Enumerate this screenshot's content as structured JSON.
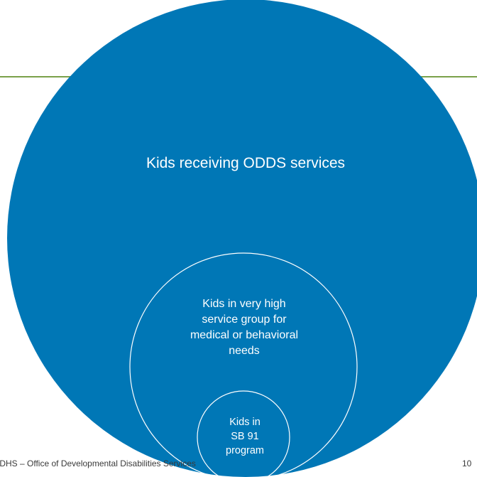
{
  "diagram": {
    "outer_label": "Kids receiving ODDS services",
    "middle_label": [
      "Kids in very high",
      "service group for",
      "medical or behavioral",
      "needs"
    ],
    "inner_label": [
      "Kids in",
      "SB 91",
      "program"
    ]
  },
  "footer": {
    "text": "ODHS – Office of Developmental Disabilities Services",
    "page_number": "10"
  },
  "colors": {
    "circle_fill": "#0077b6",
    "circle_outline": "#ffffff",
    "rule": "#7aa14a"
  }
}
